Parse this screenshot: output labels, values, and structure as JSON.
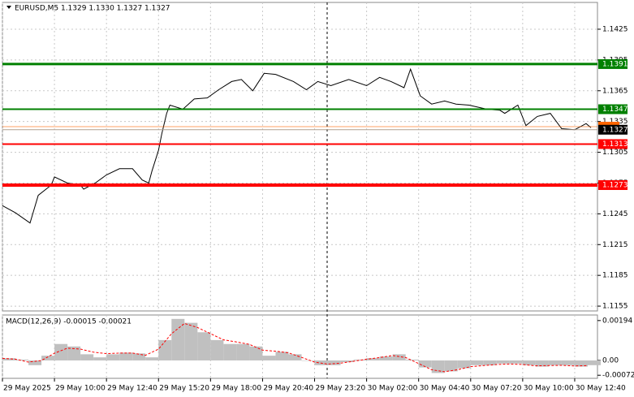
{
  "chart_data": [
    {
      "type": "line",
      "title": "EURUSD,M5  1.1329 1.1330 1.1327 1.1327",
      "xlim": [
        0,
        366
      ],
      "ylim": [
        1.11503,
        1.14511
      ],
      "yticks": [
        1.1425,
        1.1395,
        1.1365,
        1.1335,
        1.1305,
        1.1275,
        1.1245,
        1.1215,
        1.1185,
        1.1155
      ],
      "grid": true,
      "x": [
        0,
        8,
        17,
        22,
        30,
        32,
        40,
        48,
        50,
        57,
        64,
        72,
        80,
        86,
        90,
        92,
        96,
        98,
        101,
        103,
        111,
        118,
        126,
        133,
        141,
        147,
        154,
        161,
        168,
        179,
        187,
        194,
        202,
        213,
        224,
        232,
        239,
        247,
        251,
        257,
        264,
        272,
        279,
        287,
        298,
        306,
        309,
        317,
        322,
        329,
        337,
        344,
        352,
        359,
        362
      ],
      "series": [
        {
          "color": "#000000",
          "values": [
            1.1253,
            1.1246,
            1.1236,
            1.1263,
            1.1273,
            1.1281,
            1.1275,
            1.1273,
            1.1269,
            1.1275,
            1.1283,
            1.1289,
            1.1289,
            1.1278,
            1.1275,
            1.1287,
            1.1307,
            1.1323,
            1.1343,
            1.1351,
            1.1347,
            1.1357,
            1.1358,
            1.1366,
            1.1374,
            1.1376,
            1.1365,
            1.1382,
            1.1381,
            1.1374,
            1.1366,
            1.1374,
            1.137,
            1.1376,
            1.137,
            1.1378,
            1.1374,
            1.1368,
            1.1386,
            1.136,
            1.1352,
            1.1355,
            1.1352,
            1.1351,
            1.1347,
            1.1346,
            1.1343,
            1.1351,
            1.1331,
            1.134,
            1.1343,
            1.1328,
            1.1327,
            1.1333,
            1.1329
          ]
        }
      ],
      "levels": [
        {
          "value": 1.1391,
          "color": "#008000",
          "width": 3
        },
        {
          "value": 1.1347,
          "color": "#008000",
          "width": 2
        },
        {
          "value": 1.1313,
          "color": "#ff0000",
          "width": 2
        },
        {
          "value": 1.1273,
          "color": "#ff0000",
          "width": 4
        },
        {
          "value": 1.1327,
          "color": "#000000",
          "width": 1
        }
      ],
      "ask": {
        "value": 1.133,
        "color": "#ff6600"
      }
    },
    {
      "type": "bar",
      "title": "MACD(12,26,9) -0.00015 -0.00021",
      "xlim": [
        0,
        366
      ],
      "ylim": [
        -0.00087,
        0.00221
      ],
      "yticks": [
        0.00194,
        {
          "value": 0,
          "label": "0.00"
        },
        -0.00072
      ],
      "xticks": [
        {
          "value": 0,
          "label": "29 May 2025"
        },
        {
          "value": 32,
          "label": "29 May 10:00"
        },
        {
          "value": 64,
          "label": "29 May 12:40"
        },
        {
          "value": 96,
          "label": "29 May 15:20"
        },
        {
          "value": 128,
          "label": "29 May 18:00"
        },
        {
          "value": 160,
          "label": "29 May 20:40"
        },
        {
          "value": 192,
          "label": "29 May 23:20"
        },
        {
          "value": 224,
          "label": "30 May 02:00"
        },
        {
          "value": 256,
          "label": "30 May 04:40"
        },
        {
          "value": 288,
          "label": "30 May 07:20"
        },
        {
          "value": 320,
          "label": "30 May 10:00"
        },
        {
          "value": 352,
          "label": "30 May 12:40"
        }
      ],
      "x": [
        0,
        8,
        16,
        24,
        32,
        40,
        48,
        56,
        64,
        72,
        80,
        88,
        96,
        104,
        112,
        120,
        128,
        136,
        144,
        152,
        160,
        168,
        176,
        184,
        192,
        200,
        208,
        216,
        224,
        232,
        240,
        248,
        256,
        264,
        272,
        280,
        288,
        296,
        304,
        312,
        320,
        328,
        336,
        344,
        352,
        360
      ],
      "series": [
        {
          "type": "bar",
          "color": "#c0c0c0",
          "values": [
            0.00011,
            4e-05,
            -0.00023,
            0.00023,
            0.0008,
            0.00068,
            0.0003,
            0.00015,
            0.0003,
            0.00038,
            0.00034,
            0.00015,
            0.00099,
            0.00202,
            0.00183,
            0.00137,
            0.00099,
            0.0008,
            0.0008,
            0.00068,
            0.00023,
            0.00042,
            0.0003,
            0,
            -0.00023,
            -0.00023,
            -8e-05,
            4e-05,
            0.00011,
            0.00019,
            0.0003,
            4e-05,
            -0.00034,
            -0.00061,
            -0.00053,
            -0.00038,
            -0.00023,
            -0.00023,
            -0.00015,
            -0.00015,
            -0.00023,
            -0.0003,
            -0.00023,
            -0.00023,
            -0.0003,
            -0.00023
          ]
        },
        {
          "type": "line",
          "color": "#ff0000",
          "values": [
            0.0001,
            6e-05,
            -8e-05,
            0,
            0.00035,
            0.0006,
            0.00055,
            0.0004,
            0.00033,
            0.00036,
            0.00036,
            0.00025,
            0.00055,
            0.0013,
            0.0018,
            0.0016,
            0.0013,
            0.001,
            0.0009,
            0.00078,
            0.0005,
            0.00045,
            0.00037,
            0.00015,
            -8e-05,
            -0.00018,
            -0.00013,
            -4e-05,
            6e-05,
            0.00014,
            0.00024,
            0.00014,
            -0.00015,
            -0.00045,
            -0.00055,
            -0.00045,
            -0.0003,
            -0.00025,
            -0.0002,
            -0.00017,
            -0.0002,
            -0.00026,
            -0.00025,
            -0.00024,
            -0.00027,
            -0.00025
          ]
        }
      ]
    }
  ]
}
